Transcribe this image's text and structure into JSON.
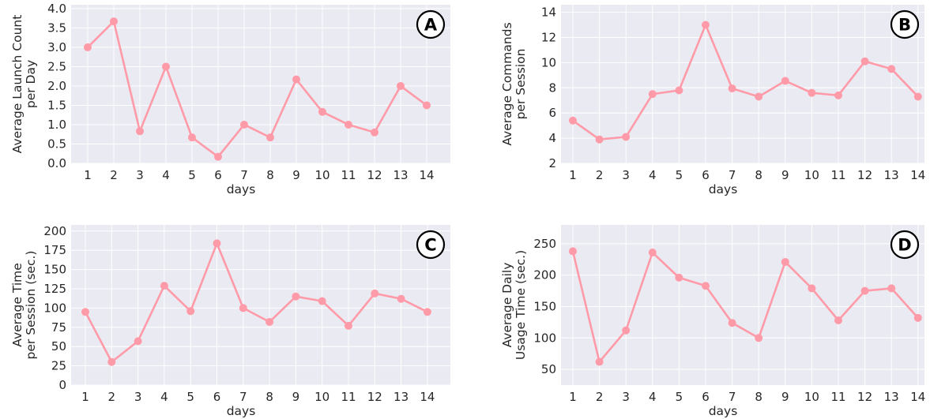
{
  "chart_data": [
    {
      "type": "line",
      "panel": "A",
      "x": [
        1,
        2,
        3,
        4,
        5,
        6,
        7,
        8,
        9,
        10,
        11,
        12,
        13,
        14
      ],
      "xlabel": "days",
      "ylabel": [
        "Average Launch Count",
        "per Day"
      ],
      "ylim": [
        0,
        4.1
      ],
      "yticks": [
        "0.0",
        "0.5",
        "1.0",
        "1.5",
        "2.0",
        "2.5",
        "3.0",
        "3.5",
        "4.0"
      ],
      "series": [
        {
          "values": [
            3.0,
            3.67,
            0.83,
            2.5,
            0.67,
            0.17,
            1.0,
            0.67,
            2.17,
            1.33,
            1.0,
            0.8,
            2.0,
            1.5
          ]
        }
      ],
      "grid": true
    },
    {
      "type": "line",
      "panel": "B",
      "x": [
        1,
        2,
        3,
        4,
        5,
        6,
        7,
        8,
        9,
        10,
        11,
        12,
        13,
        14
      ],
      "xlabel": "days",
      "ylabel": [
        "Average Commands",
        "per Session"
      ],
      "ylim": [
        2,
        14.6
      ],
      "yticks": [
        "2",
        "4",
        "6",
        "8",
        "10",
        "12",
        "14"
      ],
      "series": [
        {
          "values": [
            5.4,
            3.9,
            4.1,
            7.5,
            7.8,
            13.0,
            7.95,
            7.3,
            8.55,
            7.6,
            7.4,
            10.1,
            9.5,
            7.3
          ]
        }
      ],
      "grid": true
    },
    {
      "type": "line",
      "panel": "C",
      "x": [
        1,
        2,
        3,
        4,
        5,
        6,
        7,
        8,
        9,
        10,
        11,
        12,
        13,
        14
      ],
      "xlabel": "days",
      "ylabel": [
        "Average Time",
        "per Session (sec.)"
      ],
      "ylim": [
        0,
        208
      ],
      "yticks": [
        "0",
        "25",
        "50",
        "75",
        "100",
        "125",
        "150",
        "175",
        "200"
      ],
      "series": [
        {
          "values": [
            95,
            30,
            57,
            129,
            96,
            184,
            100,
            82,
            115,
            109,
            77,
            119,
            112,
            95
          ]
        }
      ],
      "grid": true
    },
    {
      "type": "line",
      "panel": "D",
      "x": [
        1,
        2,
        3,
        4,
        5,
        6,
        7,
        8,
        9,
        10,
        11,
        12,
        13,
        14
      ],
      "xlabel": "days",
      "ylabel": [
        "Average Daily",
        "Usage Time (sec.)"
      ],
      "ylim": [
        25,
        280
      ],
      "yticks": [
        "50",
        "100",
        "150",
        "200",
        "250"
      ],
      "series": [
        {
          "values": [
            238,
            62,
            112,
            236,
            196,
            183,
            124,
            100,
            221,
            179,
            128,
            175,
            179,
            132
          ]
        }
      ],
      "grid": true
    }
  ],
  "style": {
    "line_color": "#ff9aa8",
    "plot_bg": "#eaeaf2",
    "grid_color": "#ffffff"
  }
}
